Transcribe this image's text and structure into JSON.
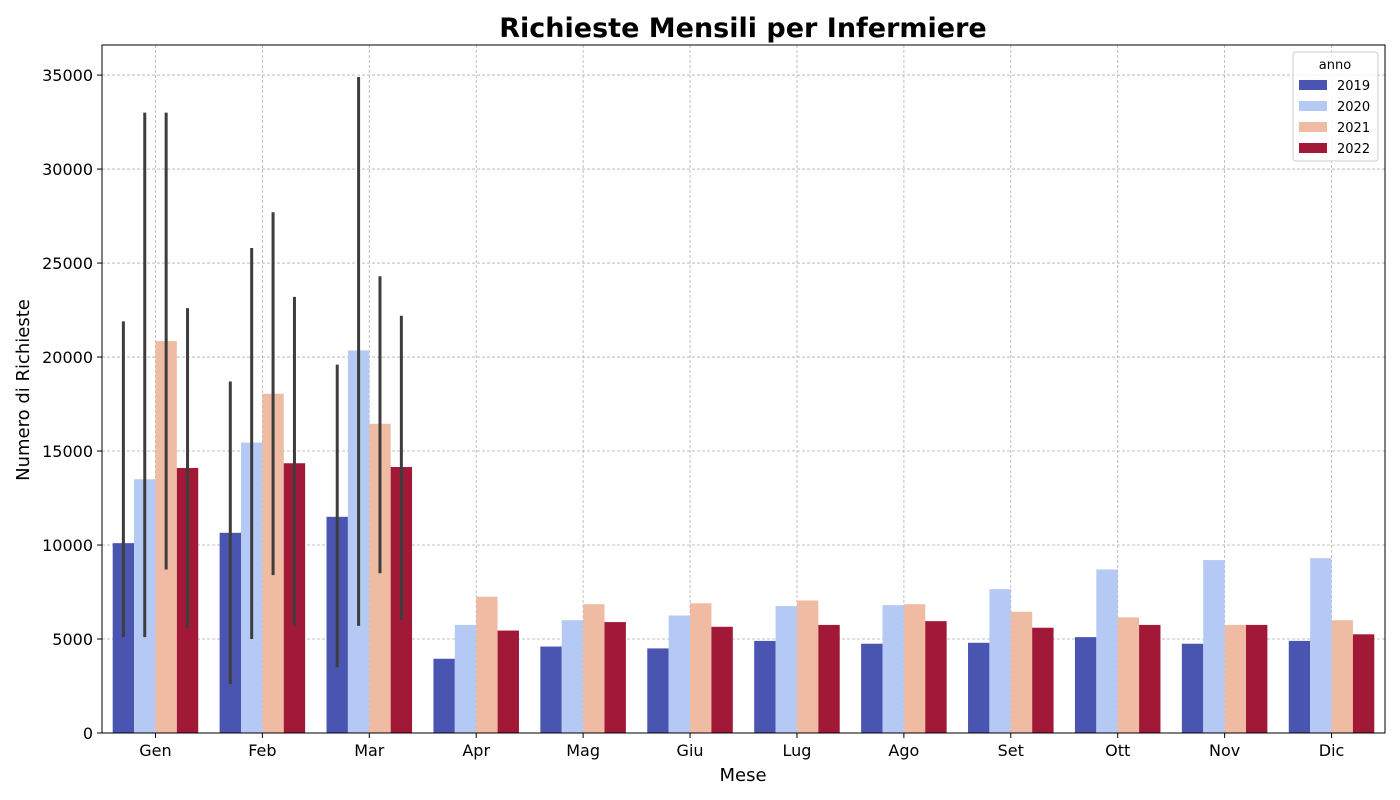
{
  "chart_data": {
    "type": "bar",
    "title": "Richieste Mensili per Infermiere",
    "xlabel": "Mese",
    "ylabel": "Numero di Richieste",
    "ylim": [
      0,
      36600
    ],
    "yticks": [
      0,
      5000,
      10000,
      15000,
      20000,
      25000,
      30000,
      35000
    ],
    "grid": true,
    "legend": {
      "title": "anno",
      "placement": "top-right"
    },
    "categories": [
      "Gen",
      "Feb",
      "Mar",
      "Apr",
      "Mag",
      "Giu",
      "Lug",
      "Ago",
      "Set",
      "Ott",
      "Nov",
      "Dic"
    ],
    "series": [
      {
        "name": "2019",
        "color": "#4a55b2",
        "values": [
          10100,
          10650,
          11500,
          3950,
          4600,
          4500,
          4900,
          4750,
          4800,
          5100,
          4750,
          4900
        ],
        "error": [
          [
            5100,
            21900
          ],
          [
            2600,
            18700
          ],
          [
            3500,
            19600
          ],
          null,
          null,
          null,
          null,
          null,
          null,
          null,
          null,
          null
        ]
      },
      {
        "name": "2020",
        "color": "#b4c9f3",
        "values": [
          13500,
          15450,
          20350,
          5750,
          6000,
          6250,
          6750,
          6800,
          7650,
          8700,
          9200,
          9300
        ],
        "error": [
          [
            5100,
            33000
          ],
          [
            5000,
            25800
          ],
          [
            5700,
            34900
          ],
          null,
          null,
          null,
          null,
          null,
          null,
          null,
          null,
          null
        ]
      },
      {
        "name": "2021",
        "color": "#efbba3",
        "values": [
          20850,
          18050,
          16450,
          7250,
          6850,
          6900,
          7050,
          6850,
          6450,
          6150,
          5750,
          6000
        ],
        "error": [
          [
            8700,
            33000
          ],
          [
            8400,
            27700
          ],
          [
            8500,
            24300
          ],
          null,
          null,
          null,
          null,
          null,
          null,
          null,
          null,
          null
        ]
      },
      {
        "name": "2022",
        "color": "#a11937",
        "values": [
          14100,
          14350,
          14150,
          5450,
          5900,
          5650,
          5750,
          5950,
          5600,
          5750,
          5750,
          5250
        ],
        "error": [
          [
            5600,
            22600
          ],
          [
            5700,
            23200
          ],
          [
            6000,
            22200
          ],
          null,
          null,
          null,
          null,
          null,
          null,
          null,
          null,
          null
        ]
      }
    ]
  }
}
